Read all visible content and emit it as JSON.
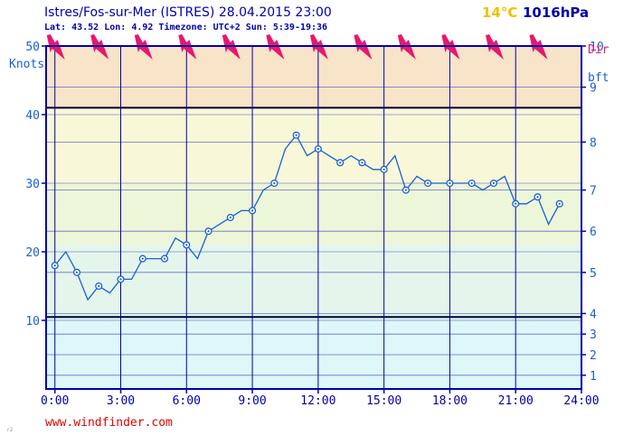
{
  "header": {
    "title": "Istres/Fos-sur-Mer (ISTRES) 28.04.2015 23:00",
    "info": "Lat: 43.52 Lon: 4.92 Timezone: UTC+2 Sun: 5:39-19:36",
    "temperature": "14°C",
    "pressure": "1016hPa"
  },
  "footer": {
    "site": "www.windfinder.com",
    "corner_mark": "r2"
  },
  "colors": {
    "axis": "#0000aa",
    "series": "#1a5fd6",
    "arrow": "#e8176e",
    "temperature": "#f0c000",
    "site": "#e00000"
  },
  "chart_data": {
    "type": "line",
    "title": "",
    "x_unit": "hours",
    "xlim": [
      -0.4,
      24
    ],
    "x_ticks": [
      "0:00",
      "3:00",
      "6:00",
      "9:00",
      "12:00",
      "15:00",
      "18:00",
      "21:00",
      "24:00"
    ],
    "ylim": [
      0,
      50
    ],
    "left_axis": {
      "label": "Knots",
      "ticks": [
        "10",
        "20",
        "30",
        "40",
        "50"
      ]
    },
    "right_axis": {
      "label_top": "Dir",
      "label_unit": "bft",
      "ticks": [
        "1",
        "2",
        "3",
        "4",
        "5",
        "6",
        "7",
        "8",
        "9",
        "10"
      ]
    },
    "right_axis_values": [
      1,
      2,
      3,
      4,
      5,
      6,
      7,
      8,
      9,
      10
    ],
    "right_axis_knots": [
      2,
      5,
      8,
      11,
      17,
      23,
      29,
      36,
      44,
      50
    ],
    "grid": true,
    "bands": [
      {
        "from": 0,
        "to": 10.5,
        "color": "#dcf8f8"
      },
      {
        "from": 10.5,
        "to": 21,
        "color": "#e4f6ec"
      },
      {
        "from": 21,
        "to": 30,
        "color": "#ecf6d8"
      },
      {
        "from": 30,
        "to": 41,
        "color": "#f8f8d8"
      },
      {
        "from": 41,
        "to": 50,
        "color": "#f8e4c8"
      }
    ],
    "strong_lines": [
      10.5,
      41
    ],
    "series": [
      {
        "x": [
          0,
          0.5,
          1,
          1.5,
          2,
          2.5,
          3,
          3.5,
          4,
          4.5,
          5,
          5.5,
          6,
          6.5,
          7,
          7.5,
          8,
          8.5,
          9,
          9.5,
          10,
          10.5,
          11,
          11.5,
          12,
          12.5,
          13,
          13.5,
          14,
          14.5,
          15,
          15.5,
          16,
          16.5,
          17,
          17.5,
          18,
          18.5,
          19,
          19.5,
          20,
          20.5,
          21,
          21.5,
          22,
          22.5,
          23
        ],
        "values": [
          18,
          20,
          17,
          13,
          15,
          14,
          16,
          16,
          19,
          19,
          19,
          22,
          21,
          19,
          23,
          24,
          25,
          26,
          26,
          29,
          30,
          35,
          37,
          34,
          35,
          34,
          33,
          34,
          33,
          32,
          32,
          34,
          29,
          31,
          30,
          30,
          30,
          30,
          30,
          29,
          30,
          31,
          27,
          27,
          28,
          24,
          27
        ]
      }
    ],
    "marker_x": [
      0,
      1,
      2,
      3,
      4,
      5,
      6,
      7,
      8,
      9,
      10,
      11,
      12,
      13,
      14,
      15,
      16,
      17,
      18,
      19,
      20,
      21,
      22,
      23
    ],
    "direction_hours": [
      0,
      2,
      4,
      6,
      8,
      10,
      12,
      14,
      16,
      18,
      20,
      22
    ]
  }
}
